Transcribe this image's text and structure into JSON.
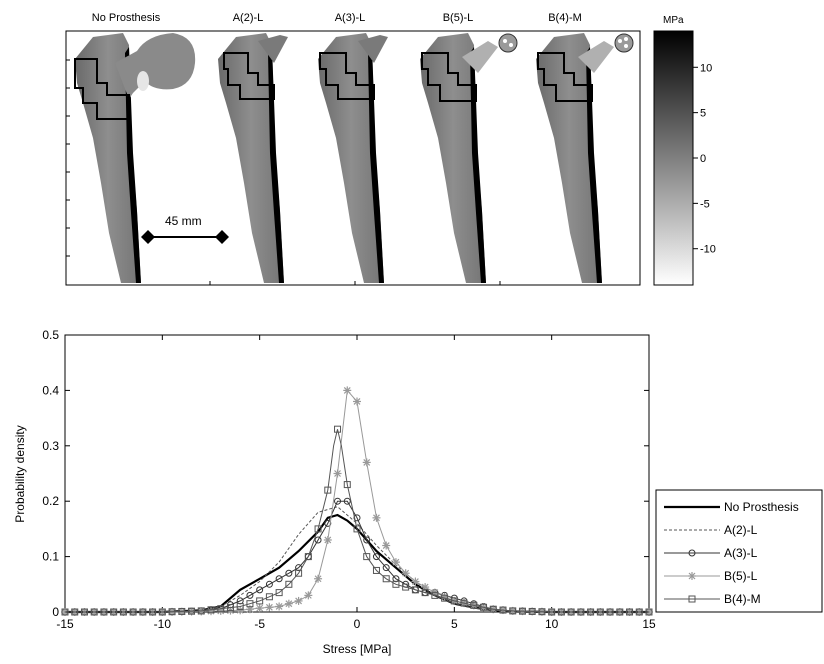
{
  "top_panel": {
    "panel_labels": [
      "No Prosthesis",
      "A(2)-L",
      "A(3)-L",
      "B(5)-L",
      "B(4)-M"
    ],
    "scale_bar_label": "45 mm",
    "colorbar": {
      "unit": "MPa",
      "ticks": [
        "10",
        "5",
        "0",
        "-5",
        "-10"
      ],
      "range": [
        -14,
        14
      ],
      "colors": {
        "high": "#000000",
        "low": "#ffffff"
      }
    }
  },
  "chart_data": {
    "type": "line",
    "title": "",
    "xlabel": "Stress [MPa]",
    "ylabel": "Probability density",
    "xlim": [
      -15,
      15
    ],
    "ylim": [
      0,
      0.5
    ],
    "xticks": [
      "-15",
      "-10",
      "-5",
      "0",
      "5",
      "10",
      "15"
    ],
    "yticks": [
      "0",
      "0.1",
      "0.2",
      "0.3",
      "0.4",
      "0.5"
    ],
    "grid": false,
    "legend_position": "right",
    "series": [
      {
        "name": "No Prosthesis",
        "style": "solid-thick",
        "marker": "none",
        "color": "#000000",
        "x": [
          -15,
          -10,
          -8,
          -7,
          -6,
          -5,
          -4,
          -3,
          -2,
          -1.5,
          -1,
          -0.5,
          0,
          1,
          2,
          3,
          4,
          5,
          6,
          7,
          8,
          10,
          15
        ],
        "y": [
          0,
          0,
          0.003,
          0.01,
          0.04,
          0.06,
          0.08,
          0.11,
          0.145,
          0.17,
          0.175,
          0.165,
          0.15,
          0.11,
          0.08,
          0.05,
          0.03,
          0.015,
          0.008,
          0.003,
          0.001,
          0,
          0
        ]
      },
      {
        "name": "A(2)-L",
        "style": "dashed",
        "marker": "none",
        "color": "#555555",
        "x": [
          -15,
          -10,
          -8,
          -7,
          -6,
          -5,
          -4,
          -3,
          -2,
          -1,
          0,
          1,
          2,
          3,
          4,
          5,
          6,
          7,
          8,
          10,
          15
        ],
        "y": [
          0,
          0,
          0.002,
          0.01,
          0.03,
          0.055,
          0.09,
          0.14,
          0.18,
          0.19,
          0.16,
          0.12,
          0.085,
          0.055,
          0.03,
          0.015,
          0.007,
          0.003,
          0.001,
          0,
          0
        ]
      },
      {
        "name": "A(3)-L",
        "style": "solid",
        "marker": "circle",
        "color": "#333333",
        "x": [
          -15,
          -10,
          -8,
          -7,
          -6,
          -5.5,
          -5,
          -4.5,
          -4,
          -3.5,
          -3,
          -2.5,
          -2,
          -1.5,
          -1,
          -0.5,
          0,
          0.5,
          1,
          1.5,
          2,
          2.5,
          3,
          3.5,
          4,
          4.5,
          5,
          5.5,
          6,
          6.5,
          7,
          8,
          10,
          15
        ],
        "y": [
          0,
          0,
          0.002,
          0.006,
          0.02,
          0.03,
          0.04,
          0.05,
          0.06,
          0.07,
          0.08,
          0.1,
          0.13,
          0.16,
          0.2,
          0.2,
          0.17,
          0.13,
          0.1,
          0.08,
          0.06,
          0.05,
          0.04,
          0.035,
          0.035,
          0.03,
          0.025,
          0.02,
          0.015,
          0.01,
          0.005,
          0.002,
          0,
          0
        ]
      },
      {
        "name": "B(5)-L",
        "style": "solid",
        "marker": "star",
        "color": "#999999",
        "x": [
          -15,
          -10,
          -8,
          -6,
          -5,
          -4,
          -3.5,
          -3,
          -2.5,
          -2,
          -1.5,
          -1,
          -0.5,
          0,
          0.5,
          1,
          1.5,
          2,
          2.5,
          3,
          3.5,
          4,
          5,
          6,
          7,
          8,
          10,
          15
        ],
        "y": [
          0,
          0,
          0.001,
          0.003,
          0.007,
          0.01,
          0.015,
          0.02,
          0.03,
          0.06,
          0.13,
          0.25,
          0.4,
          0.38,
          0.27,
          0.17,
          0.12,
          0.09,
          0.07,
          0.055,
          0.045,
          0.035,
          0.02,
          0.012,
          0.005,
          0.002,
          0,
          0
        ]
      },
      {
        "name": "B(4)-M",
        "style": "solid",
        "marker": "square",
        "color": "#555555",
        "x": [
          -15,
          -10,
          -8,
          -6,
          -5,
          -4,
          -3.5,
          -3,
          -2.5,
          -2,
          -1.5,
          -1.2,
          -1,
          -0.8,
          -0.5,
          0,
          0.5,
          1,
          1.5,
          2,
          2.5,
          3,
          3.5,
          4,
          5,
          6,
          7,
          8,
          10,
          15
        ],
        "y": [
          0,
          0,
          0.002,
          0.01,
          0.02,
          0.035,
          0.05,
          0.07,
          0.1,
          0.15,
          0.22,
          0.3,
          0.33,
          0.3,
          0.23,
          0.15,
          0.1,
          0.075,
          0.06,
          0.05,
          0.045,
          0.04,
          0.035,
          0.03,
          0.02,
          0.012,
          0.005,
          0.002,
          0,
          0
        ]
      }
    ]
  }
}
